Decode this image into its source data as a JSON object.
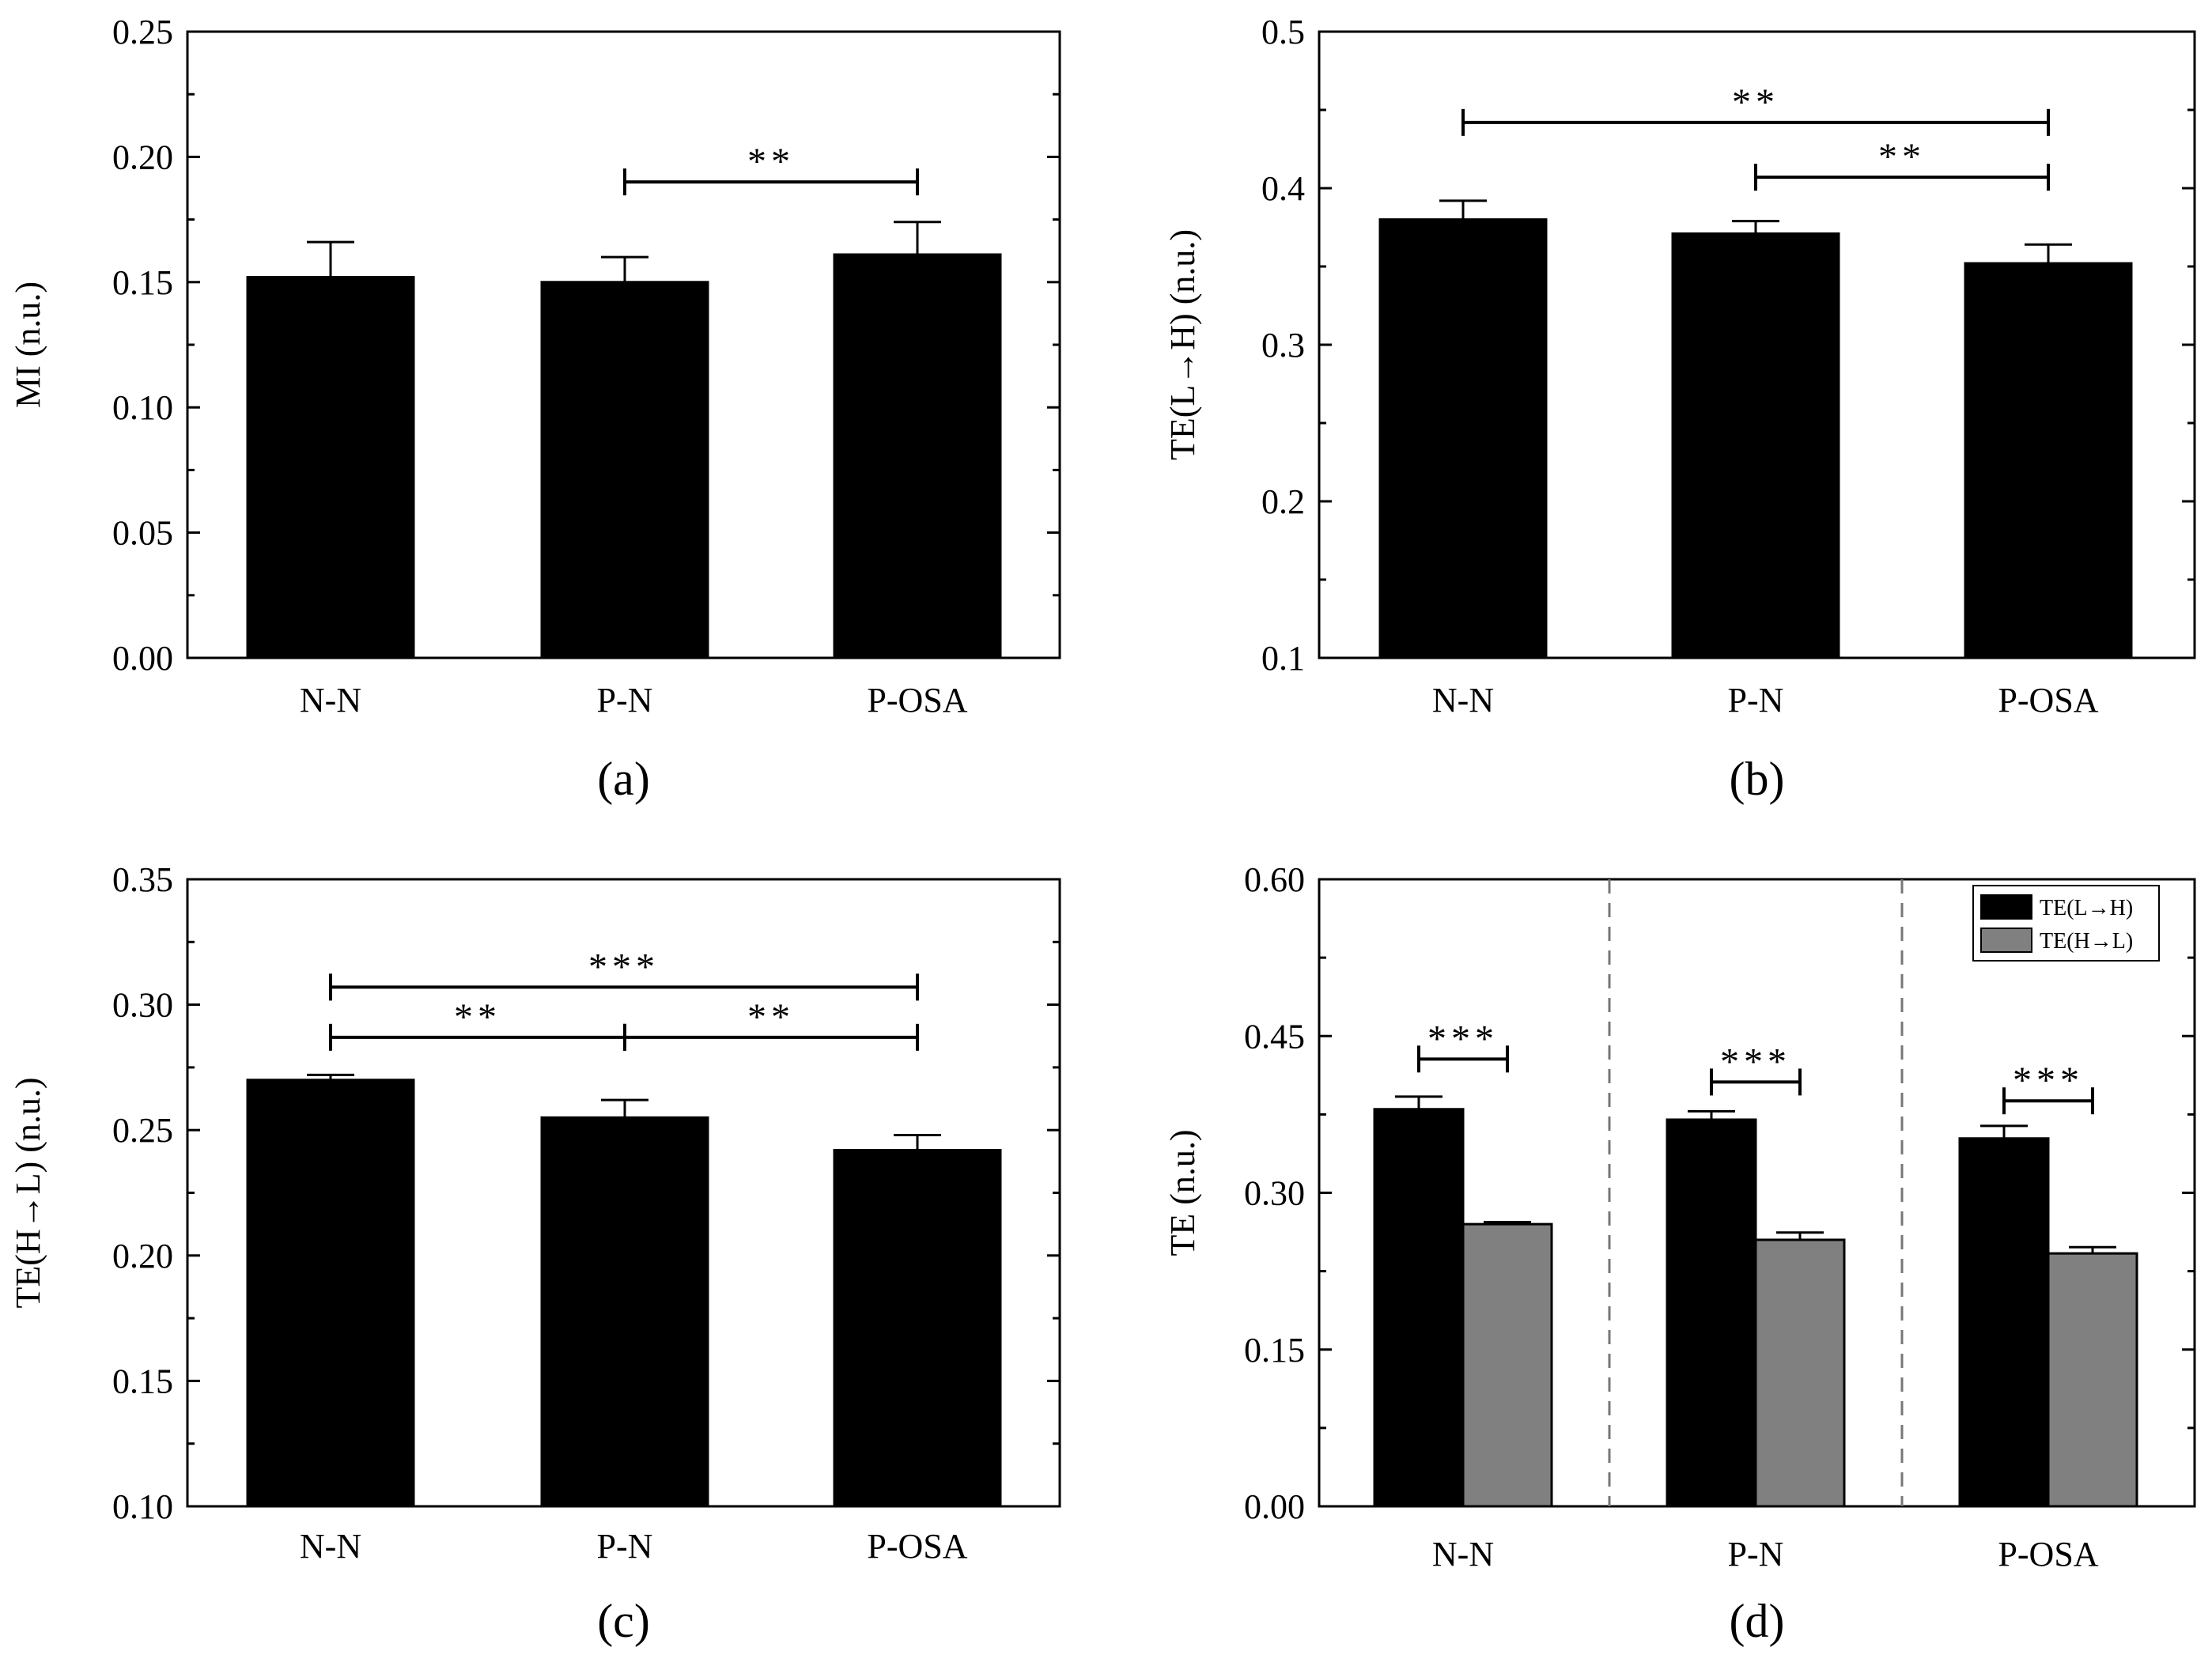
{
  "chart_data": [
    {
      "id": "a",
      "type": "bar",
      "panel_label": "(a)",
      "categories": [
        "N-N",
        "P-N",
        "P-OSA"
      ],
      "series": [
        {
          "name": "MI",
          "values": [
            0.152,
            0.15,
            0.161
          ],
          "errors": [
            0.014,
            0.01,
            0.013
          ],
          "color": "#000000"
        }
      ],
      "ylabel": "MI (n.u.)",
      "ylim": [
        0.0,
        0.25
      ],
      "yticks": [
        0.0,
        0.05,
        0.1,
        0.15,
        0.2,
        0.25
      ],
      "ytick_labels": [
        "0.00",
        "0.05",
        "0.10",
        "0.15",
        "0.20",
        "0.25"
      ],
      "significance": [
        {
          "from": 1,
          "to": 2,
          "y": 0.19,
          "label": "**"
        }
      ]
    },
    {
      "id": "b",
      "type": "bar",
      "panel_label": "(b)",
      "categories": [
        "N-N",
        "P-N",
        "P-OSA"
      ],
      "series": [
        {
          "name": "TE(L→H)",
          "values": [
            0.38,
            0.371,
            0.352
          ],
          "errors": [
            0.012,
            0.008,
            0.012
          ],
          "color": "#000000"
        }
      ],
      "ylabel": "TE(L→H) (n.u.)",
      "ylim": [
        0.1,
        0.5
      ],
      "yticks": [
        0.1,
        0.2,
        0.3,
        0.4,
        0.5
      ],
      "ytick_labels": [
        "0.1",
        "0.2",
        "0.3",
        "0.4",
        "0.5"
      ],
      "significance": [
        {
          "from": 0,
          "to": 2,
          "y": 0.442,
          "label": "**"
        },
        {
          "from": 1,
          "to": 2,
          "y": 0.407,
          "label": "**"
        }
      ]
    },
    {
      "id": "c",
      "type": "bar",
      "panel_label": "(c)",
      "categories": [
        "N-N",
        "P-N",
        "P-OSA"
      ],
      "series": [
        {
          "name": "TE(H→L)",
          "values": [
            0.27,
            0.255,
            0.242
          ],
          "errors": [
            0.002,
            0.007,
            0.006
          ],
          "color": "#000000"
        }
      ],
      "ylabel": "TE(H→L) (n.u.)",
      "ylim": [
        0.1,
        0.35
      ],
      "yticks": [
        0.1,
        0.15,
        0.2,
        0.25,
        0.3,
        0.35
      ],
      "ytick_labels": [
        "0.10",
        "0.15",
        "0.20",
        "0.25",
        "0.30",
        "0.35"
      ],
      "significance": [
        {
          "from": 0,
          "to": 2,
          "y": 0.307,
          "label": "***"
        },
        {
          "from": 0,
          "to": 1,
          "y": 0.287,
          "label": "**"
        },
        {
          "from": 1,
          "to": 2,
          "y": 0.287,
          "label": "**"
        }
      ]
    },
    {
      "id": "d",
      "type": "bar",
      "panel_label": "(d)",
      "categories": [
        "N-N",
        "P-N",
        "P-OSA"
      ],
      "series": [
        {
          "name": "TE(L→H)",
          "values": [
            0.38,
            0.37,
            0.352
          ],
          "errors": [
            0.012,
            0.008,
            0.012
          ],
          "color": "#000000"
        },
        {
          "name": "TE(H→L)",
          "values": [
            0.27,
            0.255,
            0.242
          ],
          "errors": [
            0.002,
            0.007,
            0.006
          ],
          "color": "#808080"
        }
      ],
      "ylabel": "TE (n.u.)",
      "ylim": [
        0.0,
        0.6
      ],
      "yticks": [
        0.0,
        0.15,
        0.3,
        0.45,
        0.6
      ],
      "ytick_labels": [
        "0.00",
        "0.15",
        "0.30",
        "0.45",
        "0.60"
      ],
      "legend_position": "top-right",
      "group_separators": true,
      "significance": [
        {
          "group": 0,
          "y": 0.428,
          "label": "***"
        },
        {
          "group": 1,
          "y": 0.406,
          "label": "***"
        },
        {
          "group": 2,
          "y": 0.388,
          "label": "***"
        }
      ]
    }
  ]
}
